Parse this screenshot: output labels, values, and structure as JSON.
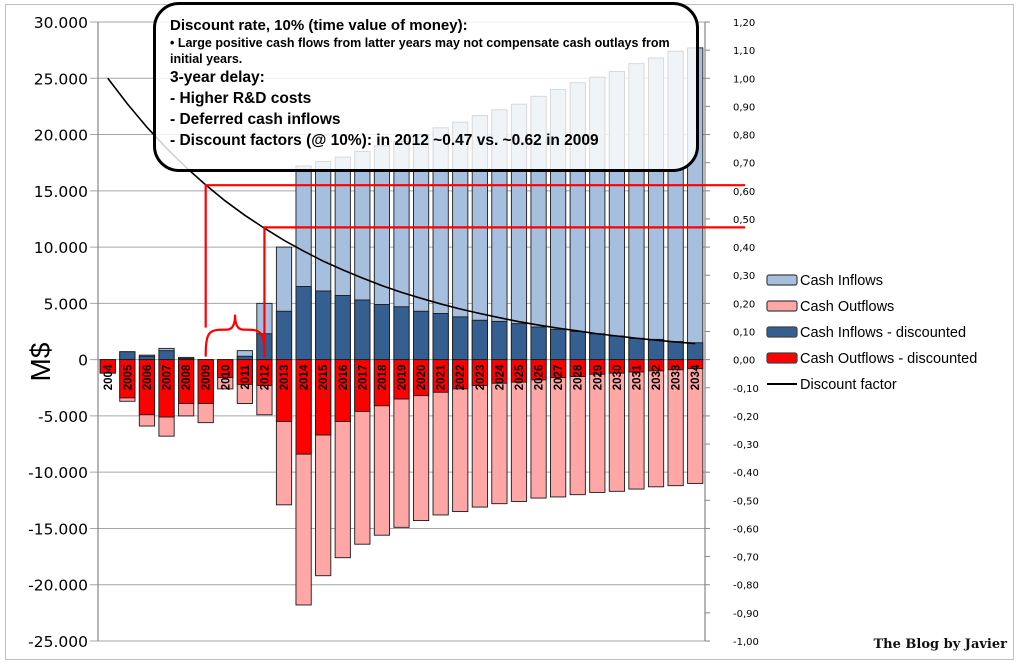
{
  "chart_data": {
    "type": "bar",
    "title": "",
    "ylabel": "M$",
    "ylim": [
      -25000,
      30000
    ],
    "y2lim": [
      -1.0,
      1.2
    ],
    "grid": true,
    "legend_position": "right",
    "left_ticks": [
      "30.000",
      "25.000",
      "20.000",
      "15.000",
      "10.000",
      "5.000",
      "0",
      "-5.000",
      "-10.000",
      "-15.000",
      "-20.000",
      "-25.000"
    ],
    "left_tick_values": [
      30000,
      25000,
      20000,
      15000,
      10000,
      5000,
      0,
      -5000,
      -10000,
      -15000,
      -20000,
      -25000
    ],
    "right_ticks": [
      "1,20",
      "1,10",
      "1,00",
      "0,90",
      "0,80",
      "0,70",
      "0,60",
      "0,50",
      "0,40",
      "0,30",
      "0,20",
      "0,10",
      "0,00",
      "-0,10",
      "-0,20",
      "-0,30",
      "-0,40",
      "-0,50",
      "-0,60",
      "-0,70",
      "-0,80",
      "-0,90",
      "-1,00"
    ],
    "right_tick_values": [
      1.2,
      1.1,
      1.0,
      0.9,
      0.8,
      0.7,
      0.6,
      0.5,
      0.4,
      0.3,
      0.2,
      0.1,
      0.0,
      -0.1,
      -0.2,
      -0.3,
      -0.4,
      -0.5,
      -0.6,
      -0.7,
      -0.8,
      -0.9,
      -1.0
    ],
    "categories": [
      "2004",
      "2005",
      "2006",
      "2007",
      "2008",
      "2009",
      "2010",
      "2011",
      "2012",
      "2013",
      "2014",
      "2015",
      "2016",
      "2017",
      "2018",
      "2019",
      "2020",
      "2021",
      "2022",
      "2023",
      "2024",
      "2025",
      "2026",
      "2027",
      "2028",
      "2029",
      "2030",
      "2031",
      "2032",
      "2033",
      "2034"
    ],
    "series": [
      {
        "name": "Cash Inflows",
        "color": "#a7bfde",
        "axis": "left",
        "values": [
          0,
          700,
          400,
          1000,
          200,
          0,
          0,
          800,
          5000,
          10000,
          17200,
          17600,
          18000,
          18500,
          19000,
          19400,
          20000,
          20600,
          21100,
          21700,
          22200,
          22700,
          23400,
          24000,
          24600,
          25100,
          25600,
          26300,
          26800,
          27400,
          27700
        ]
      },
      {
        "name": "Cash Outflows",
        "color": "#ffa6a6",
        "axis": "left",
        "values": [
          -1200,
          -3700,
          -5900,
          -6800,
          -5000,
          -5600,
          -2600,
          -3900,
          -4900,
          -12900,
          -21800,
          -19200,
          -17600,
          -16400,
          -15600,
          -14900,
          -14300,
          -13800,
          -13500,
          -13100,
          -12800,
          -12600,
          -12300,
          -12200,
          -12000,
          -11800,
          -11700,
          -11500,
          -11300,
          -11200,
          -11000
        ]
      },
      {
        "name": "Cash Inflows - discounted",
        "color": "#355f91",
        "axis": "left",
        "values": [
          0,
          700,
          300,
          800,
          100,
          0,
          0,
          300,
          2300,
          4300,
          6500,
          6100,
          5700,
          5300,
          4900,
          4700,
          4300,
          4100,
          3800,
          3500,
          3400,
          3200,
          2900,
          2700,
          2500,
          2300,
          2100,
          1900,
          1800,
          1600,
          1500
        ]
      },
      {
        "name": "Cash Outflows - discounted",
        "color": "#ff0000",
        "axis": "left",
        "values": [
          -1200,
          -3400,
          -4900,
          -5100,
          -3900,
          -3900,
          -1600,
          -2200,
          -2300,
          -5500,
          -8400,
          -6700,
          -5500,
          -4600,
          -4100,
          -3500,
          -3200,
          -2900,
          -2600,
          -2300,
          -2100,
          -2000,
          -1800,
          -1600,
          -1500,
          -1300,
          -1200,
          -1100,
          -1000,
          -900,
          -800
        ]
      },
      {
        "name": "Discount factor",
        "color": "#000000",
        "axis": "right",
        "type": "line",
        "values": [
          1.0,
          0.909,
          0.826,
          0.751,
          0.683,
          0.621,
          0.564,
          0.513,
          0.467,
          0.424,
          0.386,
          0.35,
          0.319,
          0.29,
          0.263,
          0.239,
          0.218,
          0.198,
          0.18,
          0.164,
          0.149,
          0.135,
          0.123,
          0.112,
          0.102,
          0.092,
          0.084,
          0.076,
          0.069,
          0.063,
          0.057
        ]
      }
    ],
    "annotations": {
      "reference_lines": [
        {
          "year": "2009",
          "discount_factor": 0.62
        },
        {
          "year": "2012",
          "discount_factor": 0.47
        }
      ],
      "brace": {
        "from": "2009",
        "to": "2012"
      }
    }
  },
  "note": {
    "heading": "Discount rate, 10% (time value of money):",
    "bullet": "• Large positive cash flows from latter years may not compensate cash outlays from initial years.",
    "delay_heading": "3-year delay:",
    "items": [
      "- Higher R&D costs",
      "- Deferred cash inflows",
      "- Discount factors (@ 10%): in  2012 ~0.47 vs. ~0.62 in 2009"
    ]
  },
  "watermark": "The Blog by Javier"
}
